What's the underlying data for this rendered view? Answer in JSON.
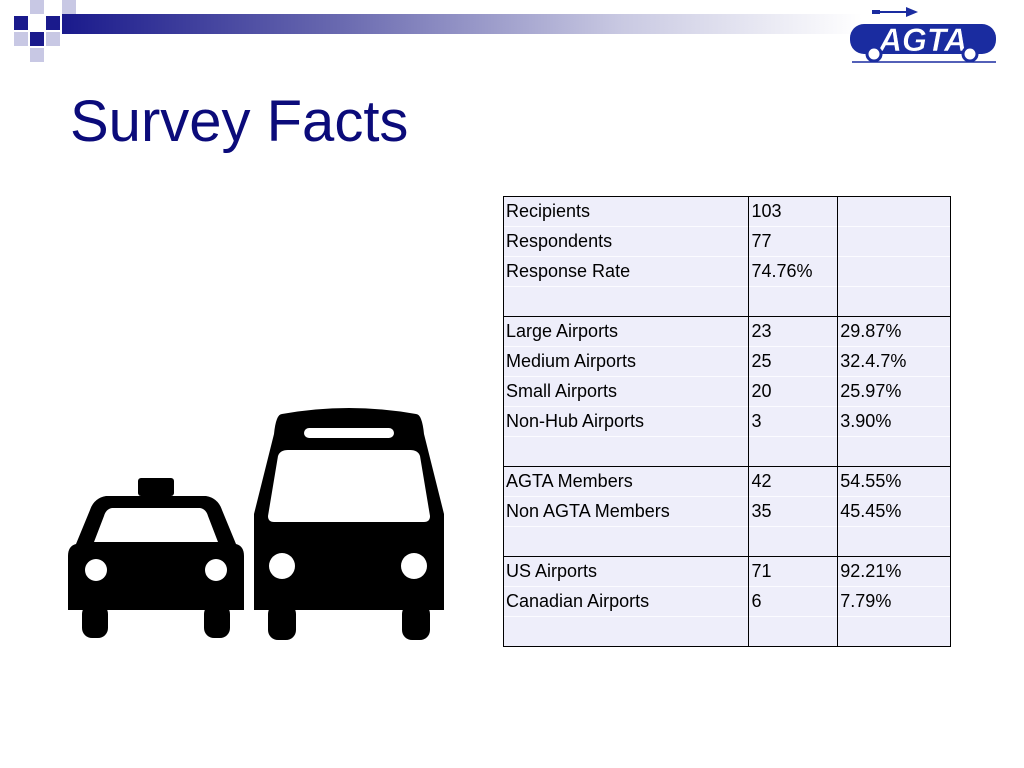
{
  "slide": {
    "title": "Survey Facts",
    "logo_text": "AGTA",
    "colors": {
      "title": "#0b0b7a",
      "accent": "#1a1a8c",
      "logo_blue": "#1a2ca0",
      "table_bg": "#eeeefa"
    },
    "icons": [
      "taxi-icon",
      "bus-icon",
      "airplane-icon"
    ]
  },
  "table": {
    "rows": [
      {
        "label": "Recipients",
        "count": "103",
        "percent": ""
      },
      {
        "label": "Respondents",
        "count": "77",
        "percent": ""
      },
      {
        "label": "Response Rate",
        "count": "74.76%",
        "percent": ""
      },
      {
        "label": "",
        "count": "",
        "percent": ""
      },
      {
        "label": "Large Airports",
        "count": "23",
        "percent": "29.87%"
      },
      {
        "label": "Medium Airports",
        "count": "25",
        "percent": "32.4.7%"
      },
      {
        "label": "Small Airports",
        "count": "20",
        "percent": "25.97%"
      },
      {
        "label": "Non-Hub Airports",
        "count": "3",
        "percent": "3.90%"
      },
      {
        "label": "",
        "count": "",
        "percent": ""
      },
      {
        "label": "AGTA Members",
        "count": "42",
        "percent": "54.55%"
      },
      {
        "label": "Non AGTA Members",
        "count": "35",
        "percent": "45.45%"
      },
      {
        "label": "",
        "count": "",
        "percent": ""
      },
      {
        "label": "US Airports",
        "count": "71",
        "percent": "92.21%"
      },
      {
        "label": "Canadian Airports",
        "count": "6",
        "percent": "7.79%"
      },
      {
        "label": "",
        "count": "",
        "percent": ""
      }
    ]
  }
}
